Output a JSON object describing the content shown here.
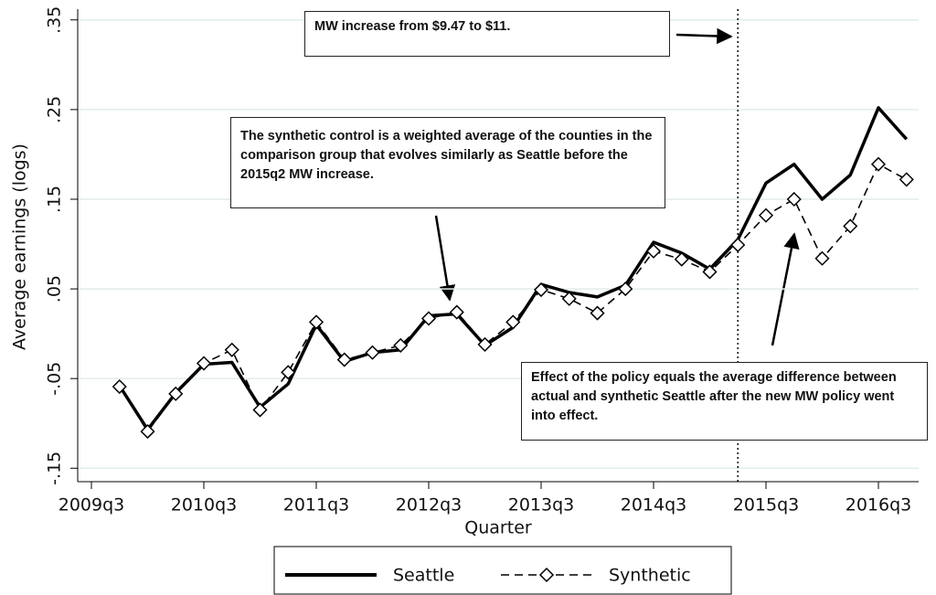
{
  "chart_data": {
    "type": "line",
    "y_label": "Average earnings (logs)",
    "x_label": "Quarter",
    "x": [
      "2009q4",
      "2010q1",
      "2010q2",
      "2010q3",
      "2010q4",
      "2011q1",
      "2011q2",
      "2011q3",
      "2011q4",
      "2012q1",
      "2012q2",
      "2012q3",
      "2012q4",
      "2013q1",
      "2013q2",
      "2013q3",
      "2013q4",
      "2014q1",
      "2014q2",
      "2014q3",
      "2014q4",
      "2015q1",
      "2015q2",
      "2015q3",
      "2015q4",
      "2016q1",
      "2016q2",
      "2016q3",
      "2016q4"
    ],
    "series": [
      {
        "name": "Seattle",
        "color": "#000000",
        "style": "solid",
        "values": [
          -0.058,
          -0.107,
          -0.066,
          -0.034,
          -0.032,
          -0.082,
          -0.056,
          0.01,
          -0.031,
          -0.021,
          -0.018,
          0.02,
          0.022,
          -0.013,
          0.007,
          0.055,
          0.046,
          0.041,
          0.054,
          0.102,
          0.09,
          0.072,
          0.105,
          0.168,
          0.189,
          0.15,
          0.177,
          0.252,
          0.217
        ]
      },
      {
        "name": "Synthetic",
        "color": "#000000",
        "style": "dashed",
        "marker": "diamond",
        "values": [
          -0.059,
          -0.109,
          -0.067,
          -0.033,
          -0.018,
          -0.085,
          -0.043,
          0.013,
          -0.029,
          -0.021,
          -0.013,
          0.017,
          0.024,
          -0.012,
          0.013,
          0.049,
          0.039,
          0.023,
          0.05,
          0.092,
          0.083,
          0.069,
          0.099,
          0.132,
          0.15,
          0.084,
          0.12,
          0.189,
          0.172
        ]
      }
    ],
    "xticks": [
      "2009q3",
      "2010q3",
      "2011q3",
      "2012q3",
      "2013q3",
      "2014q3",
      "2015q3",
      "2016q3"
    ],
    "ylim": [
      -0.165,
      0.362
    ],
    "yticks": [
      {
        "value": -0.15,
        "label": "-.15"
      },
      {
        "value": -0.05,
        "label": "-.05"
      },
      {
        "value": 0.05,
        "label": ".05"
      },
      {
        "value": 0.15,
        "label": ".15"
      },
      {
        "value": 0.25,
        "label": ".25"
      },
      {
        "value": 0.35,
        "label": ".35"
      }
    ],
    "grid": true,
    "vline": "2015q2",
    "annotations": [
      "MW increase from $9.47 to $11.",
      "The synthetic control is a weighted average of the counties in the comparison group that evolves similarly as Seattle before the 2015q2 MW increase.",
      "Effect of the policy equals the average difference between actual and synthetic Seattle after the new MW policy went into effect."
    ],
    "legend": "bottom"
  }
}
